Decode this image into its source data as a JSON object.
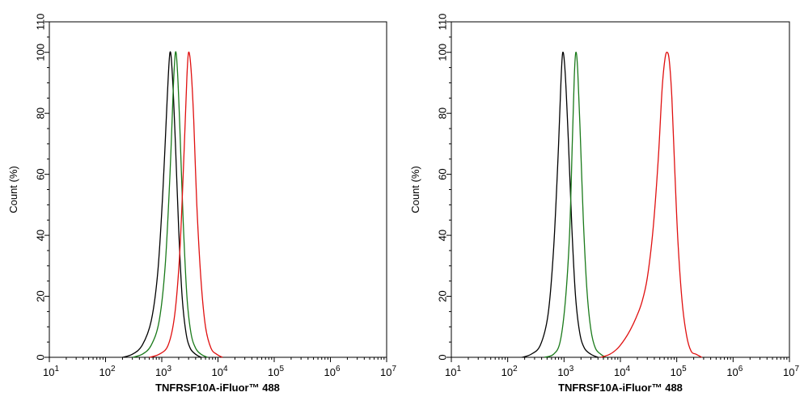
{
  "colors": {
    "black": "#000000",
    "green": "#1a7a1a",
    "red": "#e01010"
  },
  "chart_data": [
    {
      "type": "line",
      "xscale": "log10",
      "xlim": [
        10,
        10000000
      ],
      "ylim": [
        0,
        110
      ],
      "xlabel": "TNFRSF10A-iFluor™ 488",
      "ylabel": "Count  (%)",
      "x_ticks": [
        10,
        100,
        1000,
        10000,
        100000,
        1000000,
        10000000
      ],
      "x_tick_labels": [
        {
          "base": "10",
          "exp": "1"
        },
        {
          "base": "10",
          "exp": "2"
        },
        {
          "base": "10",
          "exp": "3"
        },
        {
          "base": "10",
          "exp": "4"
        },
        {
          "base": "10",
          "exp": "5"
        },
        {
          "base": "10",
          "exp": "6"
        },
        {
          "base": "10",
          "exp": "7"
        }
      ],
      "y_ticks": [
        0,
        20,
        40,
        60,
        80,
        100,
        110
      ],
      "y_tick_labels": [
        "0",
        "20",
        "40",
        "60",
        "80",
        "100",
        "110"
      ],
      "series": [
        {
          "color": "#000000",
          "x": [
            200,
            300,
            450,
            650,
            850,
            1050,
            1250,
            1400,
            1550,
            1750,
            2000,
            2300,
            2700,
            3200,
            4000,
            5000
          ],
          "y": [
            0,
            1,
            4,
            12,
            28,
            55,
            85,
            100,
            92,
            70,
            42,
            20,
            8,
            3,
            1,
            0
          ]
        },
        {
          "color": "#1a7a1a",
          "x": [
            300,
            450,
            650,
            900,
            1150,
            1400,
            1600,
            1750,
            1900,
            2100,
            2400,
            2800,
            3300,
            4000,
            5000,
            6500
          ],
          "y": [
            0,
            1,
            4,
            12,
            30,
            60,
            88,
            100,
            94,
            75,
            45,
            20,
            8,
            3,
            1,
            0
          ]
        },
        {
          "color": "#e01010",
          "x": [
            600,
            900,
            1300,
            1700,
            2100,
            2500,
            2800,
            3000,
            3300,
            3700,
            4200,
            5000,
            6000,
            7500,
            9500,
            12000
          ],
          "y": [
            0,
            1,
            4,
            14,
            35,
            68,
            92,
            100,
            95,
            78,
            50,
            25,
            10,
            3,
            1,
            0
          ]
        }
      ]
    },
    {
      "type": "line",
      "xscale": "log10",
      "xlim": [
        10,
        10000000
      ],
      "ylim": [
        0,
        110
      ],
      "xlabel": "TNFRSF10A-iFluor™ 488",
      "ylabel": "Count  (%)",
      "x_ticks": [
        10,
        100,
        1000,
        10000,
        100000,
        1000000,
        10000000
      ],
      "x_tick_labels": [
        {
          "base": "10",
          "exp": "1"
        },
        {
          "base": "10",
          "exp": "2"
        },
        {
          "base": "10",
          "exp": "3"
        },
        {
          "base": "10",
          "exp": "4"
        },
        {
          "base": "10",
          "exp": "5"
        },
        {
          "base": "10",
          "exp": "6"
        },
        {
          "base": "10",
          "exp": "7"
        }
      ],
      "y_ticks": [
        0,
        20,
        40,
        60,
        80,
        100,
        110
      ],
      "y_tick_labels": [
        "0",
        "20",
        "40",
        "60",
        "80",
        "100",
        "110"
      ],
      "series": [
        {
          "color": "#000000",
          "x": [
            180,
            260,
            380,
            520,
            650,
            780,
            880,
            950,
            1050,
            1200,
            1380,
            1600,
            1900,
            2300,
            3000,
            4000
          ],
          "y": [
            0,
            1,
            4,
            14,
            35,
            65,
            90,
            100,
            93,
            70,
            42,
            20,
            8,
            3,
            1,
            0
          ]
        },
        {
          "color": "#1a7a1a",
          "x": [
            450,
            650,
            850,
            1050,
            1250,
            1400,
            1520,
            1620,
            1750,
            1950,
            2200,
            2550,
            3000,
            3600,
            4500,
            5500
          ],
          "y": [
            0,
            1,
            5,
            18,
            40,
            70,
            92,
            100,
            94,
            72,
            45,
            22,
            9,
            3,
            1,
            0
          ]
        },
        {
          "color": "#e01010",
          "x": [
            4500,
            6500,
            9000,
            12000,
            15000,
            19000,
            24000,
            30000,
            38000,
            47000,
            55000,
            62000,
            68000,
            74000,
            82000,
            92000,
            105000,
            125000,
            150000,
            180000,
            220000,
            280000
          ],
          "y": [
            0,
            1,
            3,
            6,
            9,
            13,
            18,
            26,
            42,
            65,
            88,
            98,
            100,
            97,
            85,
            62,
            38,
            18,
            7,
            2,
            1,
            0
          ]
        }
      ]
    }
  ]
}
